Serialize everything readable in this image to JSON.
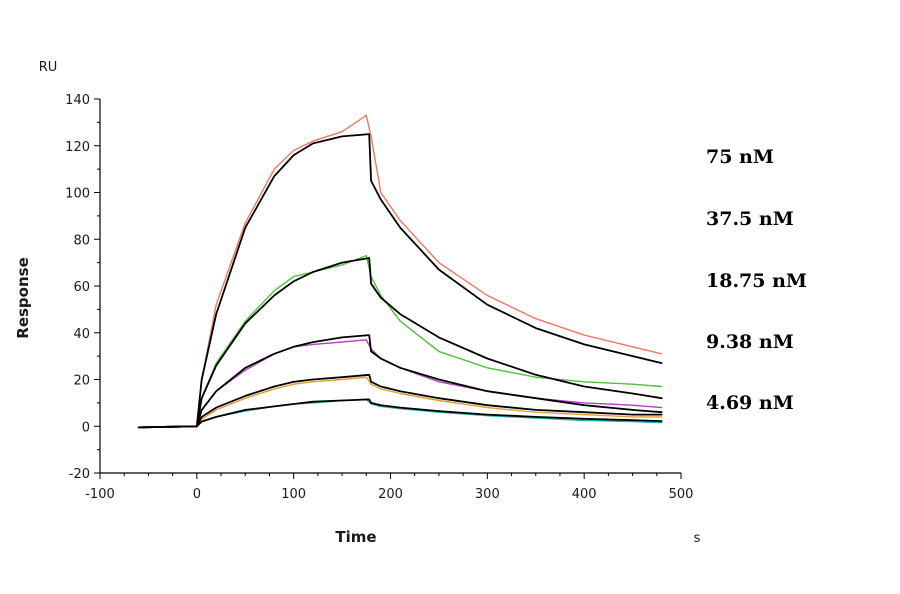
{
  "chart_data": {
    "type": "line",
    "xlabel": "Time",
    "ylabel": "Response",
    "x_unit": "s",
    "y_unit": "RU",
    "xlim": [
      -100,
      500
    ],
    "ylim": [
      -20,
      140
    ],
    "x_ticks": [
      -100,
      0,
      100,
      200,
      300,
      400,
      500
    ],
    "y_ticks": [
      -20,
      0,
      20,
      40,
      60,
      80,
      100,
      120,
      140
    ],
    "x_minor_step": 25,
    "y_minor_step": 10,
    "grid": false,
    "legend": "none",
    "labels": [
      "75 nM",
      "37.5 nM",
      "18.75 nM",
      "9.38 nM",
      "4.69 nM"
    ],
    "series": [
      {
        "color": "#f07860",
        "x": [
          -60,
          0,
          5,
          20,
          50,
          80,
          100,
          120,
          150,
          175,
          180,
          190,
          210,
          250,
          300,
          350,
          400,
          450,
          480
        ],
        "y": [
          -0.5,
          0,
          20,
          52,
          87,
          110,
          118,
          122,
          126,
          133,
          124,
          100,
          88,
          70,
          56,
          46,
          39,
          34,
          31
        ]
      },
      {
        "color": "#000000",
        "x": [
          -60,
          0,
          5,
          20,
          50,
          80,
          100,
          120,
          150,
          178,
          180,
          190,
          210,
          250,
          300,
          350,
          400,
          450,
          480
        ],
        "y": [
          -0.5,
          0,
          20,
          48,
          85,
          107,
          116,
          121,
          124,
          125,
          105,
          97,
          85,
          67,
          52,
          42,
          35,
          30,
          27
        ]
      },
      {
        "color": "#50c040",
        "x": [
          -60,
          0,
          5,
          20,
          50,
          80,
          100,
          120,
          150,
          175,
          180,
          190,
          210,
          250,
          300,
          350,
          400,
          450,
          480
        ],
        "y": [
          -0.5,
          0,
          12,
          27,
          45,
          58,
          64,
          66,
          69,
          73,
          64,
          56,
          45,
          32,
          25,
          21,
          19,
          18,
          17
        ]
      },
      {
        "color": "#000000",
        "x": [
          -60,
          0,
          5,
          20,
          50,
          80,
          100,
          120,
          150,
          178,
          180,
          190,
          210,
          250,
          300,
          350,
          400,
          450,
          480
        ],
        "y": [
          -0.5,
          0,
          12,
          26,
          44,
          56,
          62,
          66,
          70,
          72,
          61,
          55,
          48,
          38,
          29,
          22,
          17,
          14,
          12
        ]
      },
      {
        "color": "#b040c0",
        "x": [
          -60,
          0,
          5,
          20,
          50,
          80,
          100,
          120,
          150,
          175,
          180,
          190,
          210,
          250,
          300,
          350,
          400,
          450,
          480
        ],
        "y": [
          -0.5,
          0,
          7,
          15,
          24,
          31,
          34,
          35,
          36,
          37,
          33,
          29,
          25,
          19,
          15,
          12,
          10,
          9,
          8
        ]
      },
      {
        "color": "#000000",
        "x": [
          -60,
          0,
          5,
          20,
          50,
          80,
          100,
          120,
          150,
          178,
          180,
          190,
          210,
          250,
          300,
          350,
          400,
          450,
          480
        ],
        "y": [
          -0.5,
          0,
          7,
          15,
          25,
          31,
          34,
          36,
          38,
          39,
          32,
          29,
          25,
          20,
          15,
          12,
          9,
          7,
          6
        ]
      },
      {
        "color": "#e0a030",
        "x": [
          -60,
          0,
          5,
          20,
          50,
          80,
          100,
          120,
          150,
          175,
          180,
          190,
          210,
          250,
          300,
          350,
          400,
          450,
          480
        ],
        "y": [
          -0.5,
          0,
          3,
          7,
          12,
          16,
          18,
          19,
          20,
          21,
          18,
          16,
          14,
          11,
          8,
          6,
          5,
          4,
          4
        ]
      },
      {
        "color": "#000000",
        "x": [
          -60,
          0,
          5,
          20,
          50,
          80,
          100,
          120,
          150,
          178,
          180,
          190,
          210,
          250,
          300,
          350,
          400,
          450,
          480
        ],
        "y": [
          -0.5,
          0,
          4,
          8,
          13,
          17,
          19,
          20,
          21,
          22,
          19,
          17,
          15,
          12,
          9,
          7,
          6,
          5,
          5
        ]
      },
      {
        "color": "#20b0b0",
        "x": [
          -60,
          0,
          5,
          20,
          50,
          80,
          100,
          120,
          150,
          175,
          180,
          190,
          210,
          250,
          300,
          350,
          400,
          450,
          480
        ],
        "y": [
          -0.5,
          0,
          2,
          4,
          6.5,
          8.5,
          9.5,
          10,
          11,
          11.5,
          9.5,
          8.5,
          7.5,
          6,
          4.5,
          3.5,
          2.5,
          2,
          1.5
        ]
      },
      {
        "color": "#000000",
        "x": [
          -60,
          0,
          5,
          20,
          50,
          80,
          100,
          120,
          150,
          178,
          180,
          190,
          210,
          250,
          300,
          350,
          400,
          450,
          480
        ],
        "y": [
          -0.5,
          0,
          2,
          4,
          7,
          8.5,
          9.5,
          10.5,
          11,
          11.5,
          10,
          9,
          8,
          6.5,
          5,
          4,
          3.2,
          2.6,
          2.2
        ]
      }
    ]
  }
}
